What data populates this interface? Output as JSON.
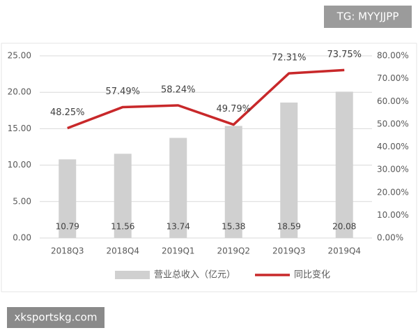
{
  "chart_data": {
    "type": "bar",
    "categories": [
      "2018Q3",
      "2018Q4",
      "2019Q1",
      "2019Q2",
      "2019Q3",
      "2019Q4"
    ],
    "series": [
      {
        "name": "营业总收入（亿元）",
        "color": "#d0d0d0",
        "values": [
          10.79,
          11.56,
          13.74,
          15.38,
          18.59,
          20.08
        ]
      },
      {
        "name": "同比变化",
        "type": "line",
        "axis": "y2",
        "color": "#c8282a",
        "values": [
          48.25,
          57.49,
          58.24,
          49.79,
          72.31,
          73.75
        ],
        "value_labels": [
          "48.25%",
          "57.49%",
          "58.24%",
          "49.79%",
          "72.31%",
          "73.75%"
        ]
      }
    ],
    "ylim": [
      0,
      25
    ],
    "yticks": [
      {
        "value": 0,
        "label": "0.00"
      },
      {
        "value": 5,
        "label": "5.00"
      },
      {
        "value": 10,
        "label": "10.00"
      },
      {
        "value": 15,
        "label": "15.00"
      },
      {
        "value": 20,
        "label": "20.00"
      },
      {
        "value": 25,
        "label": "25.00"
      }
    ],
    "y2lim": [
      0,
      80
    ],
    "y2ticks": [
      {
        "value": 0,
        "label": "0.00%"
      },
      {
        "value": 10,
        "label": "10.00%"
      },
      {
        "value": 20,
        "label": "20.00%"
      },
      {
        "value": 30,
        "label": "30.00%"
      },
      {
        "value": 40,
        "label": "40.00%"
      },
      {
        "value": 50,
        "label": "50.00%"
      },
      {
        "value": 60,
        "label": "60.00%"
      },
      {
        "value": 70,
        "label": "70.00%"
      },
      {
        "value": 80,
        "label": "80.00%"
      }
    ],
    "grid": true
  },
  "watermarks": [
    "TG: MYYJJPP",
    "xksportskg.com"
  ]
}
